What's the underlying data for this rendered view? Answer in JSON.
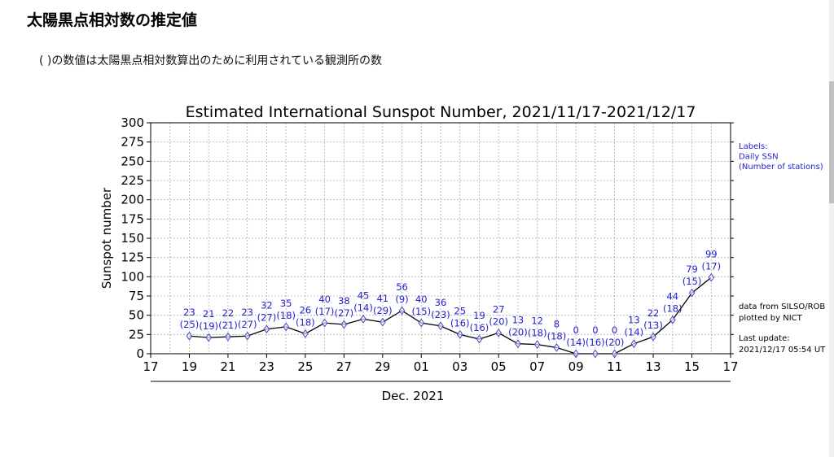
{
  "page": {
    "title": "太陽黒点相対数の推定値",
    "note": "( )の数値は太陽黒点相対数算出のために利用されている観測所の数"
  },
  "chart_data": {
    "type": "line",
    "title": "Estimated International Sunspot Number, 2021/11/17-2021/12/17",
    "xlabel": "Dec. 2021",
    "ylabel": "Sunspot number",
    "ylim": [
      0,
      300
    ],
    "yticks": [
      0,
      25,
      50,
      75,
      100,
      125,
      150,
      175,
      200,
      225,
      250,
      275,
      300
    ],
    "xticks": [
      "17",
      "19",
      "21",
      "23",
      "25",
      "27",
      "29",
      "01",
      "03",
      "05",
      "07",
      "09",
      "11",
      "13",
      "15",
      "17"
    ],
    "x_range_days": [
      0,
      30
    ],
    "grid": true,
    "colors": {
      "line": "#000000",
      "marker": "#4444cc",
      "label": "#2222cc"
    },
    "x_days": [
      2,
      3,
      4,
      5,
      6,
      7,
      8,
      9,
      10,
      11,
      12,
      13,
      14,
      15,
      16,
      17,
      18,
      19,
      20,
      21,
      22,
      23,
      24,
      25,
      26,
      27,
      28,
      29
    ],
    "series": [
      {
        "values": [
          23,
          21,
          22,
          23,
          32,
          35,
          26,
          40,
          38,
          45,
          41,
          56,
          40,
          36,
          25,
          19,
          27,
          13,
          12,
          8,
          0,
          0,
          0,
          13,
          22,
          44,
          79,
          99
        ],
        "stations": [
          25,
          19,
          21,
          27,
          27,
          18,
          18,
          17,
          27,
          14,
          29,
          9,
          15,
          23,
          16,
          16,
          20,
          20,
          18,
          18,
          14,
          16,
          20,
          14,
          13,
          18,
          15,
          17
        ]
      }
    ],
    "legend_labels": [
      "Labels:",
      "Daily SSN",
      "(Number of stations)"
    ],
    "info_text": [
      "data from SILSO/ROB",
      "plotted by NICT",
      "Last update:",
      "2021/12/17 05:54 UT"
    ]
  }
}
